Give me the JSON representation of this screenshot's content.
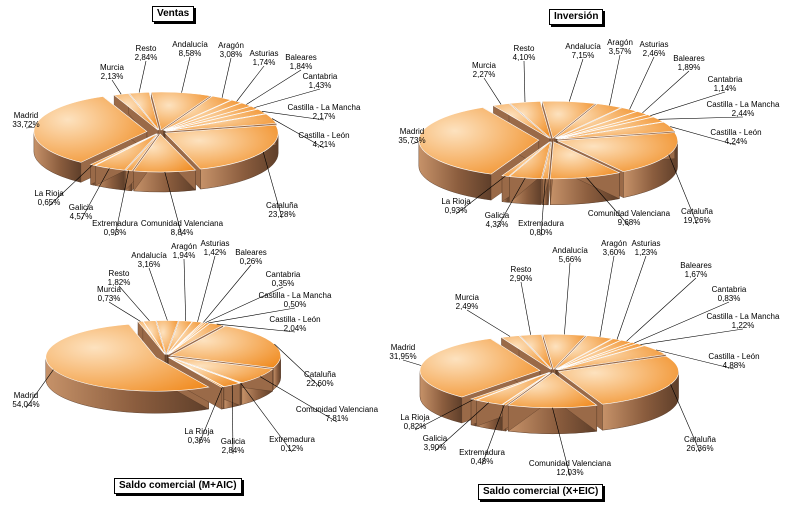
{
  "chart_data": [
    {
      "type": "pie",
      "title": "Ventas",
      "slices": [
        {
          "label": "Andalucía",
          "value": 8.58,
          "display": "8,58%"
        },
        {
          "label": "Aragón",
          "value": 3.08,
          "display": "3,08%"
        },
        {
          "label": "Asturias",
          "value": 1.74,
          "display": "1,74%"
        },
        {
          "label": "Baleares",
          "value": 1.84,
          "display": "1,84%"
        },
        {
          "label": "Cantabria",
          "value": 1.43,
          "display": "1,43%"
        },
        {
          "label": "Castilla - La Mancha",
          "value": 2.17,
          "display": "2,17%"
        },
        {
          "label": "Castilla - León",
          "value": 4.21,
          "display": "4,21%"
        },
        {
          "label": "Cataluña",
          "value": 23.28,
          "display": "23,28%"
        },
        {
          "label": "Comunidad Valenciana",
          "value": 8.84,
          "display": "8,84%"
        },
        {
          "label": "Extremadura",
          "value": 0.93,
          "display": "0,93%"
        },
        {
          "label": "Galicia",
          "value": 4.57,
          "display": "4,57%"
        },
        {
          "label": "La Rioja",
          "value": 0.65,
          "display": "0,65%"
        },
        {
          "label": "Madrid",
          "value": 33.72,
          "display": "33,72%"
        },
        {
          "label": "Murcia",
          "value": 2.13,
          "display": "2,13%"
        },
        {
          "label": "Resto",
          "value": 2.84,
          "display": "2,84%"
        }
      ]
    },
    {
      "type": "pie",
      "title": "Inversión",
      "slices": [
        {
          "label": "Andalucía",
          "value": 7.15,
          "display": "7,15%"
        },
        {
          "label": "Aragón",
          "value": 3.57,
          "display": "3,57%"
        },
        {
          "label": "Asturias",
          "value": 2.46,
          "display": "2,46%"
        },
        {
          "label": "Baleares",
          "value": 1.89,
          "display": "1,89%"
        },
        {
          "label": "Cantabria",
          "value": 1.14,
          "display": "1,14%"
        },
        {
          "label": "Castilla - La Mancha",
          "value": 2.44,
          "display": "2,44%"
        },
        {
          "label": "Castilla - León",
          "value": 4.24,
          "display": "4,24%"
        },
        {
          "label": "Cataluña",
          "value": 19.26,
          "display": "19,26%"
        },
        {
          "label": "Comunidad Valenciana",
          "value": 9.68,
          "display": "9,68%"
        },
        {
          "label": "Extremadura",
          "value": 0.8,
          "display": "0,80%"
        },
        {
          "label": "Galicia",
          "value": 4.33,
          "display": "4,33%"
        },
        {
          "label": "La Rioja",
          "value": 0.93,
          "display": "0,93%"
        },
        {
          "label": "Madrid",
          "value": 35.73,
          "display": "35,73%"
        },
        {
          "label": "Murcia",
          "value": 2.27,
          "display": "2,27%"
        },
        {
          "label": "Resto",
          "value": 4.1,
          "display": "4,10%"
        }
      ]
    },
    {
      "type": "pie",
      "title": "Saldo comercial (M+AIC)",
      "slices": [
        {
          "label": "Andalucía",
          "value": 3.16,
          "display": "3,16%"
        },
        {
          "label": "Aragón",
          "value": 1.94,
          "display": "1,94%"
        },
        {
          "label": "Asturias",
          "value": 1.42,
          "display": "1,42%"
        },
        {
          "label": "Baleares",
          "value": 0.26,
          "display": "0,26%"
        },
        {
          "label": "Cantabria",
          "value": 0.35,
          "display": "0,35%"
        },
        {
          "label": "Castilla - La Mancha",
          "value": 0.5,
          "display": "0,50%"
        },
        {
          "label": "Castilla - León",
          "value": 2.04,
          "display": "2,04%"
        },
        {
          "label": "Cataluña",
          "value": 22.6,
          "display": "22,60%"
        },
        {
          "label": "Comunidad Valenciana",
          "value": 7.81,
          "display": "7,81%"
        },
        {
          "label": "Extremadura",
          "value": 0.12,
          "display": "0,12%"
        },
        {
          "label": "Galicia",
          "value": 2.84,
          "display": "2,84%"
        },
        {
          "label": "La Rioja",
          "value": 0.36,
          "display": "0,36%"
        },
        {
          "label": "Madrid",
          "value": 54.04,
          "display": "54,04%"
        },
        {
          "label": "Murcia",
          "value": 0.73,
          "display": "0,73%"
        },
        {
          "label": "Resto",
          "value": 1.82,
          "display": "1,82%"
        }
      ]
    },
    {
      "type": "pie",
      "title": "Saldo comercial (X+EIC)",
      "slices": [
        {
          "label": "Andalucía",
          "value": 5.66,
          "display": "5,66%"
        },
        {
          "label": "Aragón",
          "value": 3.6,
          "display": "3,60%"
        },
        {
          "label": "Asturias",
          "value": 1.23,
          "display": "1,23%"
        },
        {
          "label": "Baleares",
          "value": 1.67,
          "display": "1,67%"
        },
        {
          "label": "Cantabria",
          "value": 0.83,
          "display": "0,83%"
        },
        {
          "label": "Castilla - La Mancha",
          "value": 1.22,
          "display": "1,22%"
        },
        {
          "label": "Castilla - León",
          "value": 4.88,
          "display": "4,88%"
        },
        {
          "label": "Cataluña",
          "value": 26.36,
          "display": "26,36%"
        },
        {
          "label": "Comunidad Valenciana",
          "value": 12.03,
          "display": "12,03%"
        },
        {
          "label": "Extremadura",
          "value": 0.48,
          "display": "0,48%"
        },
        {
          "label": "Galicia",
          "value": 3.9,
          "display": "3,90%"
        },
        {
          "label": "La Rioja",
          "value": 0.82,
          "display": "0,82%"
        },
        {
          "label": "Madrid",
          "value": 31.95,
          "display": "31,95%"
        },
        {
          "label": "Murcia",
          "value": 2.49,
          "display": "2,49%"
        },
        {
          "label": "Resto",
          "value": 2.9,
          "display": "2,90%"
        }
      ]
    }
  ],
  "colors": {
    "slice_light": "#fde2bf",
    "slice_dark": "#f08a1e",
    "side_light": "#c69269",
    "side_dark": "#5f3f2a",
    "leader": "#000000",
    "background": "#ffffff"
  }
}
